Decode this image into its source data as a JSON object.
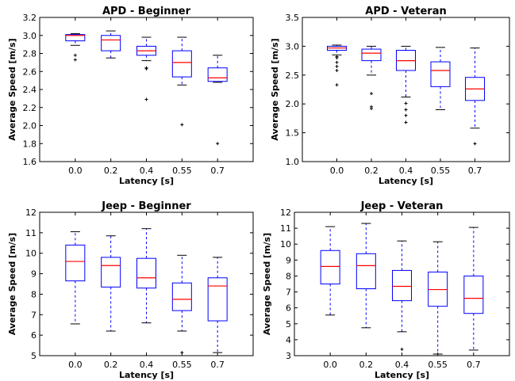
{
  "chart_data": [
    {
      "type": "box",
      "title": "APD - Beginner",
      "xlabel": "Latency [s]",
      "ylabel": "Average Speed [m/s]",
      "categories": [
        "0.0",
        "0.2",
        "0.4",
        "0.55",
        "0.7"
      ],
      "ylim": [
        1.6,
        3.2
      ],
      "yticks": [
        "1.6",
        "1.8",
        "2.0",
        "2.2",
        "2.4",
        "2.6",
        "2.8",
        "3.0",
        "3.2"
      ],
      "boxes": [
        {
          "whislo": 2.89,
          "q1": 2.94,
          "med": 3.0,
          "q3": 3.01,
          "whishi": 3.02,
          "fliers": [
            2.78,
            2.73
          ]
        },
        {
          "whislo": 2.75,
          "q1": 2.83,
          "med": 2.95,
          "q3": 3.0,
          "whishi": 3.05,
          "fliers": []
        },
        {
          "whislo": 2.72,
          "q1": 2.78,
          "med": 2.83,
          "q3": 2.88,
          "whishi": 2.98,
          "fliers": [
            2.64,
            2.63,
            2.29
          ]
        },
        {
          "whislo": 2.45,
          "q1": 2.54,
          "med": 2.7,
          "q3": 2.83,
          "whishi": 2.98,
          "fliers": [
            2.01
          ]
        },
        {
          "whislo": 2.48,
          "q1": 2.49,
          "med": 2.53,
          "q3": 2.64,
          "whishi": 2.78,
          "fliers": [
            1.8
          ]
        }
      ]
    },
    {
      "type": "box",
      "title": "APD - Veteran",
      "xlabel": "Latency [s]",
      "ylabel": "Average Speed [m/s]",
      "categories": [
        "0.0",
        "0.2",
        "0.4",
        "0.55",
        "0.7"
      ],
      "ylim": [
        1.0,
        3.5
      ],
      "yticks": [
        "1.0",
        "1.5",
        "2.0",
        "2.5",
        "3.0",
        "3.5"
      ],
      "boxes": [
        {
          "whislo": 2.85,
          "q1": 2.93,
          "med": 2.97,
          "q3": 3.0,
          "whishi": 3.02,
          "fliers": [
            2.82,
            2.8,
            2.72,
            2.65,
            2.58,
            2.33
          ]
        },
        {
          "whislo": 2.5,
          "q1": 2.75,
          "med": 2.88,
          "q3": 2.95,
          "whishi": 3.0,
          "fliers": [
            2.18,
            1.95,
            1.92
          ]
        },
        {
          "whislo": 2.12,
          "q1": 2.58,
          "med": 2.75,
          "q3": 2.93,
          "whishi": 3.0,
          "fliers": [
            2.01,
            1.9,
            1.8,
            1.68
          ]
        },
        {
          "whislo": 1.9,
          "q1": 2.3,
          "med": 2.58,
          "q3": 2.73,
          "whishi": 2.98,
          "fliers": []
        },
        {
          "whislo": 1.58,
          "q1": 2.06,
          "med": 2.26,
          "q3": 2.46,
          "whishi": 2.97,
          "fliers": [
            1.31
          ]
        }
      ]
    },
    {
      "type": "box",
      "title": "Jeep - Beginner",
      "xlabel": "Latency [s]",
      "ylabel": "Average Speed [m/s]",
      "categories": [
        "0.0",
        "0.2",
        "0.4",
        "0.55",
        "0.7"
      ],
      "ylim": [
        5,
        12
      ],
      "yticks": [
        "5",
        "6",
        "7",
        "8",
        "9",
        "10",
        "11",
        "12"
      ],
      "boxes": [
        {
          "whislo": 6.55,
          "q1": 8.65,
          "med": 9.6,
          "q3": 10.4,
          "whishi": 11.05,
          "fliers": []
        },
        {
          "whislo": 6.2,
          "q1": 8.35,
          "med": 9.4,
          "q3": 9.8,
          "whishi": 10.85,
          "fliers": []
        },
        {
          "whislo": 6.6,
          "q1": 8.3,
          "med": 8.8,
          "q3": 9.75,
          "whishi": 11.2,
          "fliers": []
        },
        {
          "whislo": 6.2,
          "q1": 7.2,
          "med": 7.75,
          "q3": 8.55,
          "whishi": 9.9,
          "fliers": [
            5.15
          ]
        },
        {
          "whislo": 5.15,
          "q1": 6.7,
          "med": 8.4,
          "q3": 8.8,
          "whishi": 9.8,
          "fliers": []
        }
      ]
    },
    {
      "type": "box",
      "title": "Jeep - Veteran",
      "xlabel": "Latency [s]",
      "ylabel": "Average Speed [m/s]",
      "categories": [
        "0.0",
        "0.2",
        "0.4",
        "0.55",
        "0.7"
      ],
      "ylim": [
        3,
        12
      ],
      "yticks": [
        "3",
        "4",
        "5",
        "6",
        "7",
        "8",
        "9",
        "10",
        "11",
        "12"
      ],
      "boxes": [
        {
          "whislo": 5.55,
          "q1": 7.5,
          "med": 8.6,
          "q3": 9.6,
          "whishi": 11.1,
          "fliers": []
        },
        {
          "whislo": 4.75,
          "q1": 7.2,
          "med": 8.65,
          "q3": 9.4,
          "whishi": 11.3,
          "fliers": []
        },
        {
          "whislo": 4.5,
          "q1": 6.45,
          "med": 7.35,
          "q3": 8.35,
          "whishi": 10.2,
          "fliers": [
            3.4
          ]
        },
        {
          "whislo": 3.1,
          "q1": 6.1,
          "med": 7.15,
          "q3": 8.25,
          "whishi": 10.15,
          "fliers": []
        },
        {
          "whislo": 3.35,
          "q1": 5.65,
          "med": 6.6,
          "q3": 8.0,
          "whishi": 11.05,
          "fliers": []
        }
      ]
    }
  ]
}
